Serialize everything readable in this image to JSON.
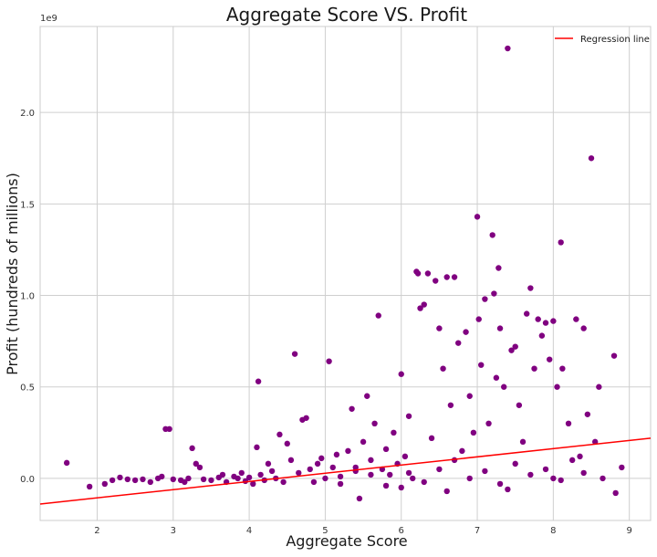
{
  "chart_data": {
    "type": "scatter",
    "title": "Aggregate Score VS. Profit",
    "xlabel": "Aggregate Score",
    "ylabel": "Profit (hundreds of millions)",
    "y_exponent_label": "1e9",
    "xlim": [
      1.25,
      9.28
    ],
    "ylim": [
      -0.23,
      2.47
    ],
    "x_ticks": [
      2,
      3,
      4,
      5,
      6,
      7,
      8,
      9
    ],
    "x_tick_labels": [
      "2",
      "3",
      "4",
      "5",
      "6",
      "7",
      "8",
      "9"
    ],
    "y_ticks": [
      0.0,
      0.5,
      1.0,
      1.5,
      2.0
    ],
    "y_tick_labels": [
      "0.0",
      "0.5",
      "1.0",
      "1.5",
      "2.0"
    ],
    "grid": true,
    "legend_position": "top-right",
    "colors": {
      "points": "#800080",
      "regression": "#ff0000"
    },
    "series": [
      {
        "kind": "scatter",
        "points": [
          [
            1.6,
            0.085
          ],
          [
            1.9,
            -0.045
          ],
          [
            2.1,
            -0.03
          ],
          [
            2.2,
            -0.01
          ],
          [
            2.3,
            0.005
          ],
          [
            2.4,
            -0.005
          ],
          [
            2.5,
            -0.01
          ],
          [
            2.6,
            -0.005
          ],
          [
            2.7,
            -0.02
          ],
          [
            2.8,
            0.0
          ],
          [
            2.85,
            0.01
          ],
          [
            2.9,
            0.27
          ],
          [
            2.95,
            0.27
          ],
          [
            3.0,
            -0.005
          ],
          [
            3.1,
            -0.01
          ],
          [
            3.15,
            -0.02
          ],
          [
            3.2,
            0.0
          ],
          [
            3.25,
            0.165
          ],
          [
            3.3,
            0.08
          ],
          [
            3.35,
            0.06
          ],
          [
            3.4,
            -0.005
          ],
          [
            3.5,
            -0.01
          ],
          [
            3.6,
            0.005
          ],
          [
            3.65,
            0.02
          ],
          [
            3.7,
            -0.02
          ],
          [
            3.8,
            0.01
          ],
          [
            3.85,
            0.0
          ],
          [
            3.9,
            0.03
          ],
          [
            3.95,
            -0.015
          ],
          [
            4.0,
            0.005
          ],
          [
            4.05,
            -0.03
          ],
          [
            4.1,
            0.17
          ],
          [
            4.12,
            0.53
          ],
          [
            4.15,
            0.02
          ],
          [
            4.2,
            -0.01
          ],
          [
            4.25,
            0.08
          ],
          [
            4.3,
            0.04
          ],
          [
            4.35,
            0.0
          ],
          [
            4.4,
            0.24
          ],
          [
            4.45,
            -0.02
          ],
          [
            4.5,
            0.19
          ],
          [
            4.55,
            0.1
          ],
          [
            4.6,
            0.68
          ],
          [
            4.65,
            0.03
          ],
          [
            4.7,
            0.32
          ],
          [
            4.75,
            0.33
          ],
          [
            4.8,
            0.05
          ],
          [
            4.85,
            -0.02
          ],
          [
            4.9,
            0.08
          ],
          [
            4.95,
            0.11
          ],
          [
            5.0,
            0.0
          ],
          [
            5.05,
            0.64
          ],
          [
            5.1,
            0.06
          ],
          [
            5.15,
            0.13
          ],
          [
            5.2,
            -0.03
          ],
          [
            5.3,
            0.15
          ],
          [
            5.35,
            0.38
          ],
          [
            5.4,
            0.04
          ],
          [
            5.45,
            -0.11
          ],
          [
            5.5,
            0.2
          ],
          [
            5.55,
            0.45
          ],
          [
            5.6,
            0.1
          ],
          [
            5.65,
            0.3
          ],
          [
            5.7,
            0.89
          ],
          [
            5.75,
            0.05
          ],
          [
            5.8,
            0.16
          ],
          [
            5.85,
            0.02
          ],
          [
            5.9,
            0.25
          ],
          [
            5.95,
            0.08
          ],
          [
            6.0,
            0.57
          ],
          [
            6.05,
            0.12
          ],
          [
            6.1,
            0.34
          ],
          [
            6.15,
            0.0
          ],
          [
            6.2,
            1.13
          ],
          [
            6.22,
            1.12
          ],
          [
            6.25,
            0.93
          ],
          [
            6.3,
            0.95
          ],
          [
            6.35,
            1.12
          ],
          [
            6.4,
            0.22
          ],
          [
            6.45,
            1.08
          ],
          [
            6.5,
            0.82
          ],
          [
            6.55,
            0.6
          ],
          [
            6.6,
            1.1
          ],
          [
            6.65,
            0.4
          ],
          [
            6.7,
            1.1
          ],
          [
            6.75,
            0.74
          ],
          [
            6.8,
            0.15
          ],
          [
            6.85,
            0.8
          ],
          [
            6.9,
            0.45
          ],
          [
            6.95,
            0.25
          ],
          [
            7.0,
            1.43
          ],
          [
            7.02,
            0.87
          ],
          [
            7.05,
            0.62
          ],
          [
            7.1,
            0.98
          ],
          [
            7.15,
            0.3
          ],
          [
            7.2,
            1.33
          ],
          [
            7.22,
            1.01
          ],
          [
            7.25,
            0.55
          ],
          [
            7.28,
            1.15
          ],
          [
            7.3,
            0.82
          ],
          [
            7.35,
            0.5
          ],
          [
            7.4,
            2.35
          ],
          [
            7.45,
            0.7
          ],
          [
            7.5,
            0.72
          ],
          [
            7.55,
            0.4
          ],
          [
            7.6,
            0.2
          ],
          [
            7.65,
            0.9
          ],
          [
            7.7,
            1.04
          ],
          [
            7.75,
            0.6
          ],
          [
            7.8,
            0.87
          ],
          [
            7.85,
            0.78
          ],
          [
            7.9,
            0.85
          ],
          [
            7.95,
            0.65
          ],
          [
            8.0,
            0.86
          ],
          [
            8.05,
            0.5
          ],
          [
            8.1,
            1.29
          ],
          [
            8.12,
            0.6
          ],
          [
            8.2,
            0.3
          ],
          [
            8.25,
            0.1
          ],
          [
            8.3,
            0.87
          ],
          [
            8.35,
            0.12
          ],
          [
            8.4,
            0.82
          ],
          [
            8.45,
            0.35
          ],
          [
            8.5,
            1.75
          ],
          [
            8.55,
            0.2
          ],
          [
            8.6,
            0.5
          ],
          [
            8.65,
            0.0
          ],
          [
            8.8,
            0.67
          ],
          [
            8.82,
            -0.08
          ],
          [
            8.9,
            0.06
          ],
          [
            6.1,
            0.03
          ],
          [
            6.3,
            -0.02
          ],
          [
            6.5,
            0.05
          ],
          [
            6.7,
            0.1
          ],
          [
            6.9,
            0.0
          ],
          [
            7.1,
            0.04
          ],
          [
            7.3,
            -0.03
          ],
          [
            7.5,
            0.08
          ],
          [
            7.7,
            0.02
          ],
          [
            7.9,
            0.05
          ],
          [
            8.1,
            -0.01
          ],
          [
            5.6,
            0.02
          ],
          [
            5.8,
            -0.04
          ],
          [
            5.4,
            0.06
          ],
          [
            5.2,
            0.01
          ],
          [
            6.0,
            -0.05
          ],
          [
            6.6,
            -0.07
          ],
          [
            7.4,
            -0.06
          ],
          [
            8.0,
            0.0
          ],
          [
            8.4,
            0.03
          ]
        ]
      },
      {
        "kind": "line",
        "name": "Regression line",
        "points": [
          [
            1.25,
            -0.14
          ],
          [
            9.28,
            0.22
          ]
        ]
      }
    ]
  }
}
